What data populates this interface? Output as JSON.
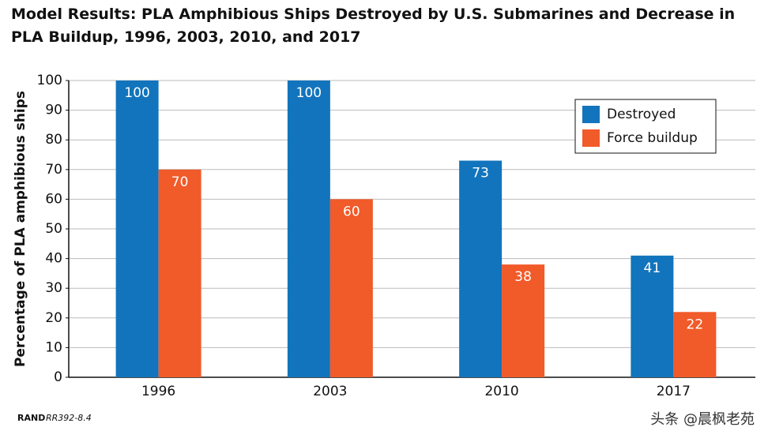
{
  "chart_data": {
    "type": "bar",
    "title": "Model Results: PLA Amphibious Ships Destroyed by U.S. Submarines and Decrease in PLA Buildup, 1996, 2003, 2010, and 2017",
    "y_label": "Percentage of PLA amphibious ships",
    "categories": [
      "1996",
      "2003",
      "2010",
      "2017"
    ],
    "series": [
      {
        "name": "Destroyed",
        "color": "#1274bc",
        "values": [
          100,
          100,
          73,
          41
        ]
      },
      {
        "name": "Force buildup",
        "color": "#f15a29",
        "values": [
          70,
          60,
          38,
          22
        ]
      }
    ],
    "ylim": [
      0,
      100
    ],
    "yticks": [
      0,
      10,
      20,
      30,
      40,
      50,
      60,
      70,
      80,
      90,
      100
    ],
    "grid": true,
    "legend": "top-right",
    "source_org": "RAND",
    "source_id": "RR392-8.4",
    "watermark": "头条 @晨枫老苑"
  }
}
